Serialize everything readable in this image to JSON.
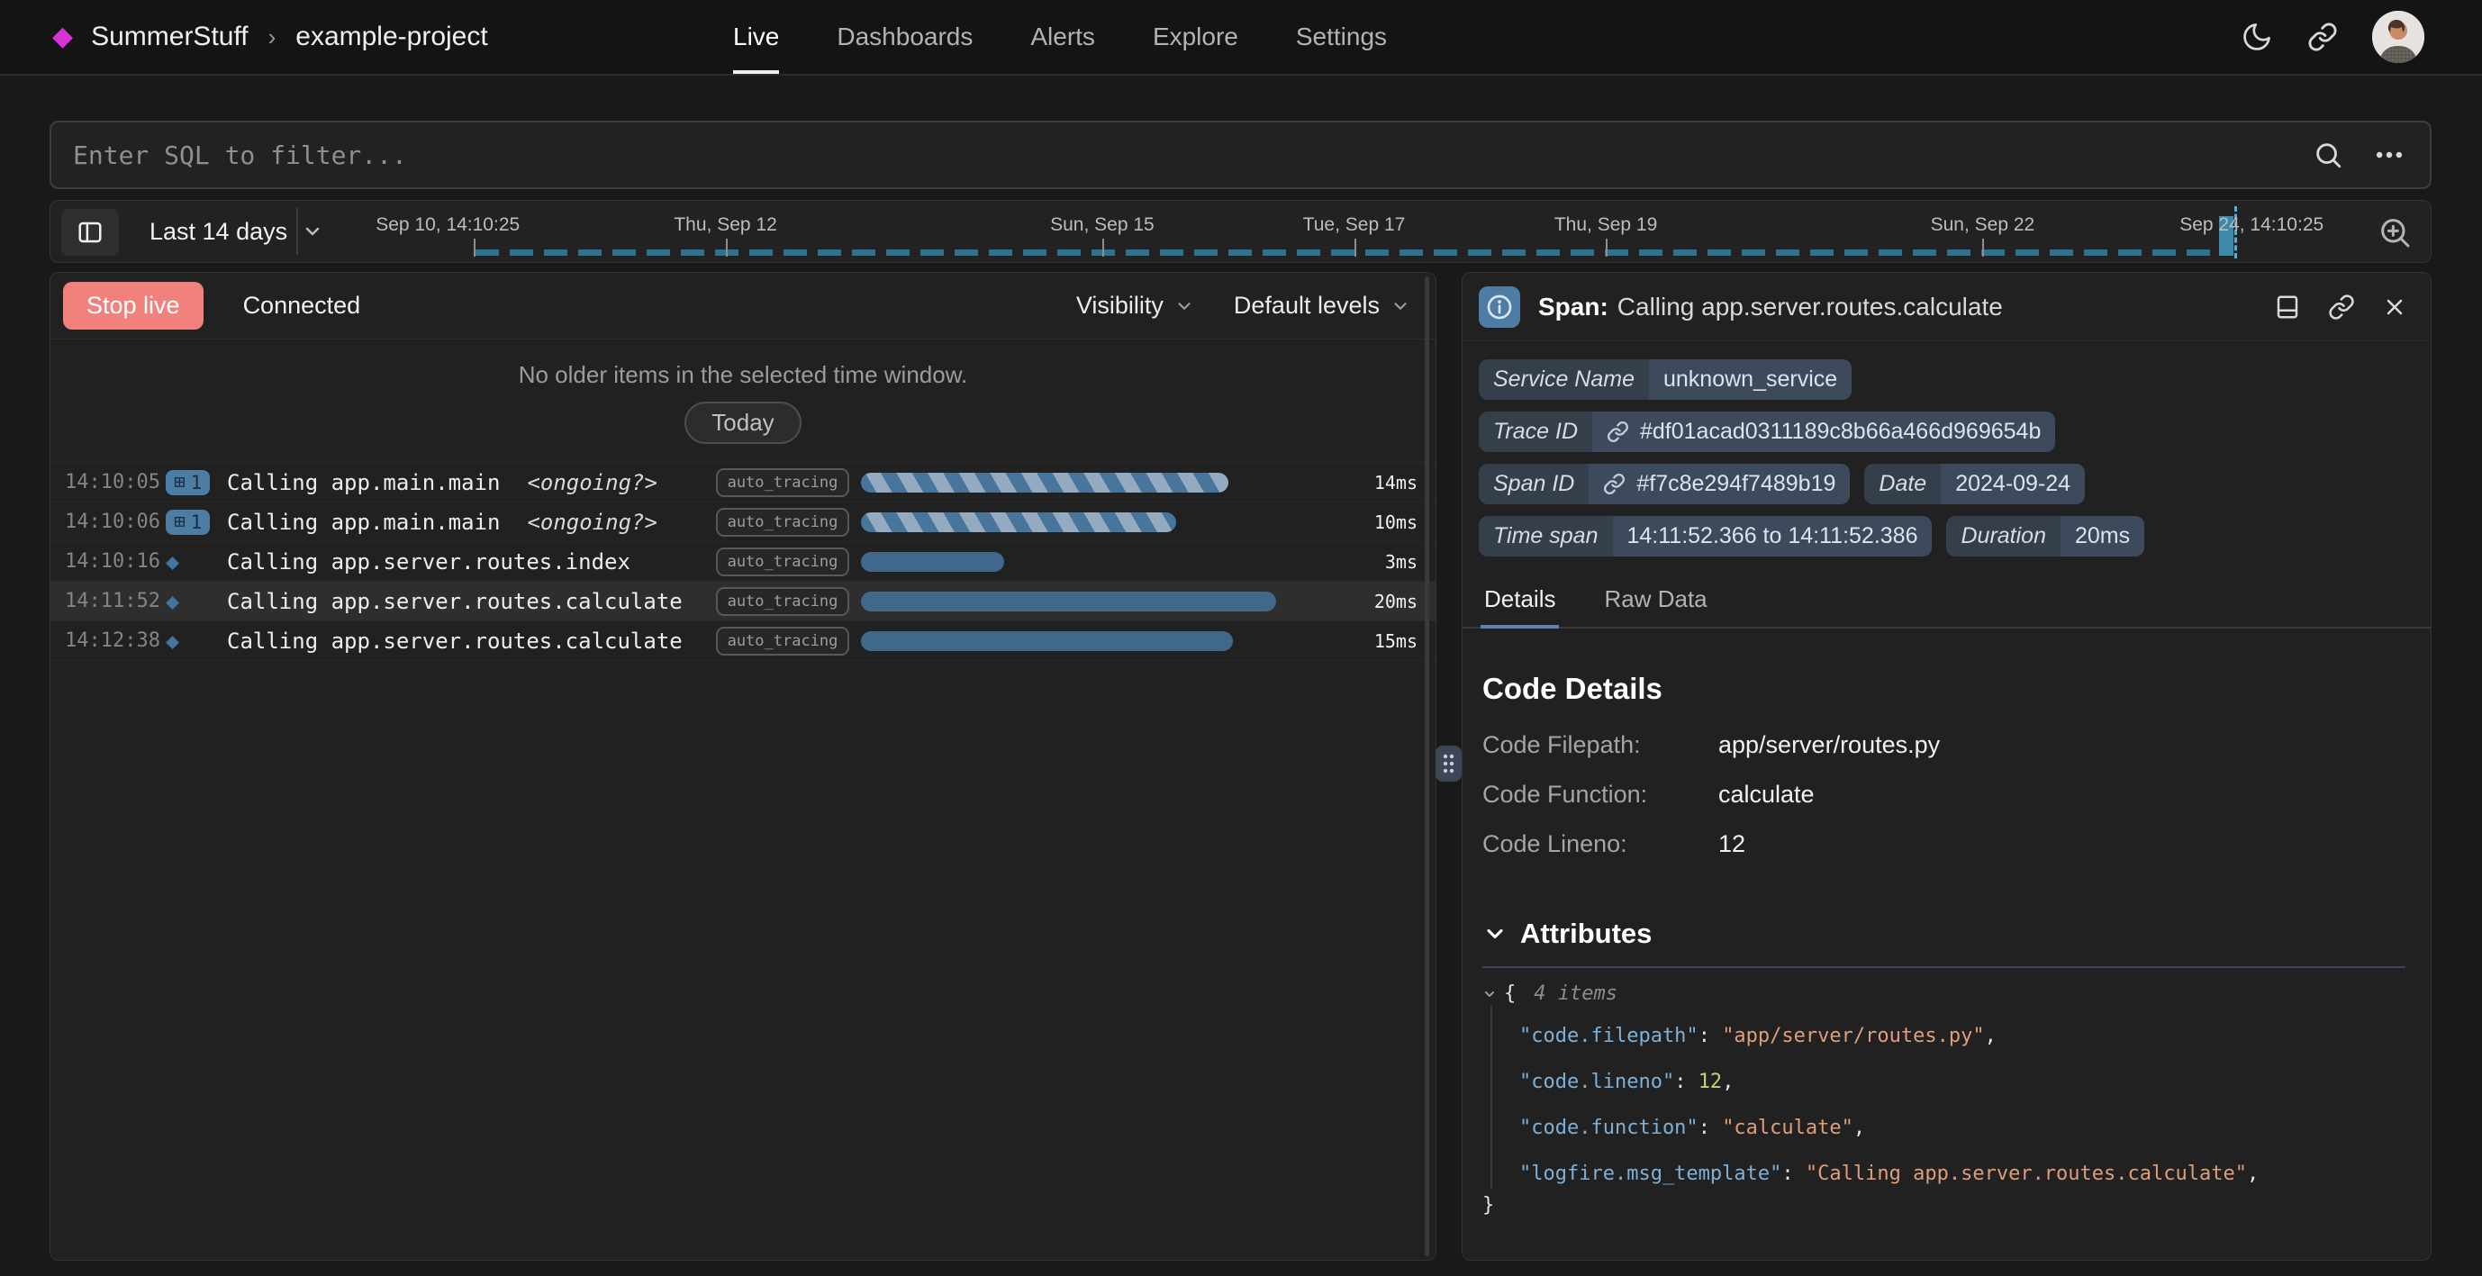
{
  "nav": {
    "org": "SummerStuff",
    "crumb_sep": "›",
    "project": "example-project",
    "tabs": [
      {
        "label": "Live",
        "active": true
      },
      {
        "label": "Dashboards",
        "active": false
      },
      {
        "label": "Alerts",
        "active": false
      },
      {
        "label": "Explore",
        "active": false
      },
      {
        "label": "Settings",
        "active": false
      }
    ]
  },
  "theme": {
    "accent_magenta": "#d832d8",
    "stop_live_red": "#f0817c",
    "span_blue": "#40688b",
    "timeline_teal": "#2f7391",
    "badge_slate": "#3d4a5c"
  },
  "filter_bar": {
    "placeholder": "Enter SQL to filter..."
  },
  "timeline": {
    "range_label": "Last 14 days",
    "ticks": [
      {
        "label": "Sep 10, 14:10:25",
        "pos": 0,
        "align": "start",
        "tickline": true
      },
      {
        "label": "Thu, Sep 12",
        "pos": 0.143,
        "align": "center",
        "tickline": true
      },
      {
        "label": "Sun, Sep 15",
        "pos": 0.357,
        "align": "center",
        "tickline": true
      },
      {
        "label": "Tue, Sep 17",
        "pos": 0.5,
        "align": "center",
        "tickline": true
      },
      {
        "label": "Thu, Sep 19",
        "pos": 0.643,
        "align": "center",
        "tickline": true
      },
      {
        "label": "Sun, Sep 22",
        "pos": 0.857,
        "align": "center",
        "tickline": true
      },
      {
        "label": "Sep 24, 14:10:25",
        "pos": 1,
        "align": "end",
        "tickline": false
      }
    ]
  },
  "live_view": {
    "stop_live_label": "Stop live",
    "status": "Connected",
    "visibility_label": "Visibility",
    "default_levels_label": "Default levels",
    "empty_message": "No older items in the selected time window.",
    "today_label": "Today",
    "rows": [
      {
        "time": "14:10:05",
        "icon": "count-badge",
        "count": "1",
        "message": "Calling app.main.main",
        "suffix": "<ongoing?>",
        "tag": "auto_tracing",
        "duration": "14ms",
        "bar_pct": 77,
        "bar_style": "striped",
        "selected": false
      },
      {
        "time": "14:10:06",
        "icon": "count-badge",
        "count": "1",
        "message": "Calling app.main.main",
        "suffix": "<ongoing?>",
        "tag": "auto_tracing",
        "duration": "10ms",
        "bar_pct": 66,
        "bar_style": "striped",
        "selected": false
      },
      {
        "time": "14:10:16",
        "icon": "diamond",
        "count": "",
        "message": "Calling app.server.routes.index",
        "suffix": "",
        "tag": "auto_tracing",
        "duration": "3ms",
        "bar_pct": 30,
        "bar_style": "solid",
        "selected": false
      },
      {
        "time": "14:11:52",
        "icon": "diamond",
        "count": "",
        "message": "Calling app.server.routes.calculate",
        "suffix": "",
        "tag": "auto_tracing",
        "duration": "20ms",
        "bar_pct": 87,
        "bar_style": "solid",
        "selected": true
      },
      {
        "time": "14:12:38",
        "icon": "diamond",
        "count": "",
        "message": "Calling app.server.routes.calculate",
        "suffix": "",
        "tag": "auto_tracing",
        "duration": "15ms",
        "bar_pct": 78,
        "bar_style": "solid",
        "selected": false
      }
    ]
  },
  "span_panel": {
    "title_prefix": "Span:",
    "title": "Calling app.server.routes.calculate",
    "badges": [
      {
        "label": "Service Name",
        "value": "unknown_service",
        "link": false,
        "row": 1
      },
      {
        "label": "Trace ID",
        "value": "#df01acad0311189c8b66a466d969654b",
        "link": true,
        "row": 2
      },
      {
        "label": "Span ID",
        "value": "#f7c8e294f7489b19",
        "link": true,
        "row": 3
      },
      {
        "label": "Date",
        "value": "2024-09-24",
        "link": false,
        "row": 3
      },
      {
        "label": "Time span",
        "value": "14:11:52.366 to 14:11:52.386",
        "link": false,
        "row": 4
      },
      {
        "label": "Duration",
        "value": "20ms",
        "link": false,
        "row": 4
      }
    ],
    "tabs": [
      {
        "label": "Details",
        "active": true
      },
      {
        "label": "Raw Data",
        "active": false
      }
    ],
    "code_details": {
      "heading": "Code Details",
      "rows": [
        {
          "label": "Code Filepath:",
          "value": "app/server/routes.py"
        },
        {
          "label": "Code Function:",
          "value": "calculate"
        },
        {
          "label": "Code Lineno:",
          "value": "12"
        }
      ]
    },
    "attributes": {
      "heading": "Attributes",
      "items_label": "4 items",
      "open_brace": "{",
      "close_brace": "}",
      "entries": [
        {
          "key": "code.filepath",
          "value": "app/server/routes.py",
          "type": "string"
        },
        {
          "key": "code.lineno",
          "value": "12",
          "type": "number"
        },
        {
          "key": "code.function",
          "value": "calculate",
          "type": "string"
        },
        {
          "key": "logfire.msg_template",
          "value": "Calling app.server.routes.calculate",
          "type": "string"
        }
      ]
    }
  }
}
